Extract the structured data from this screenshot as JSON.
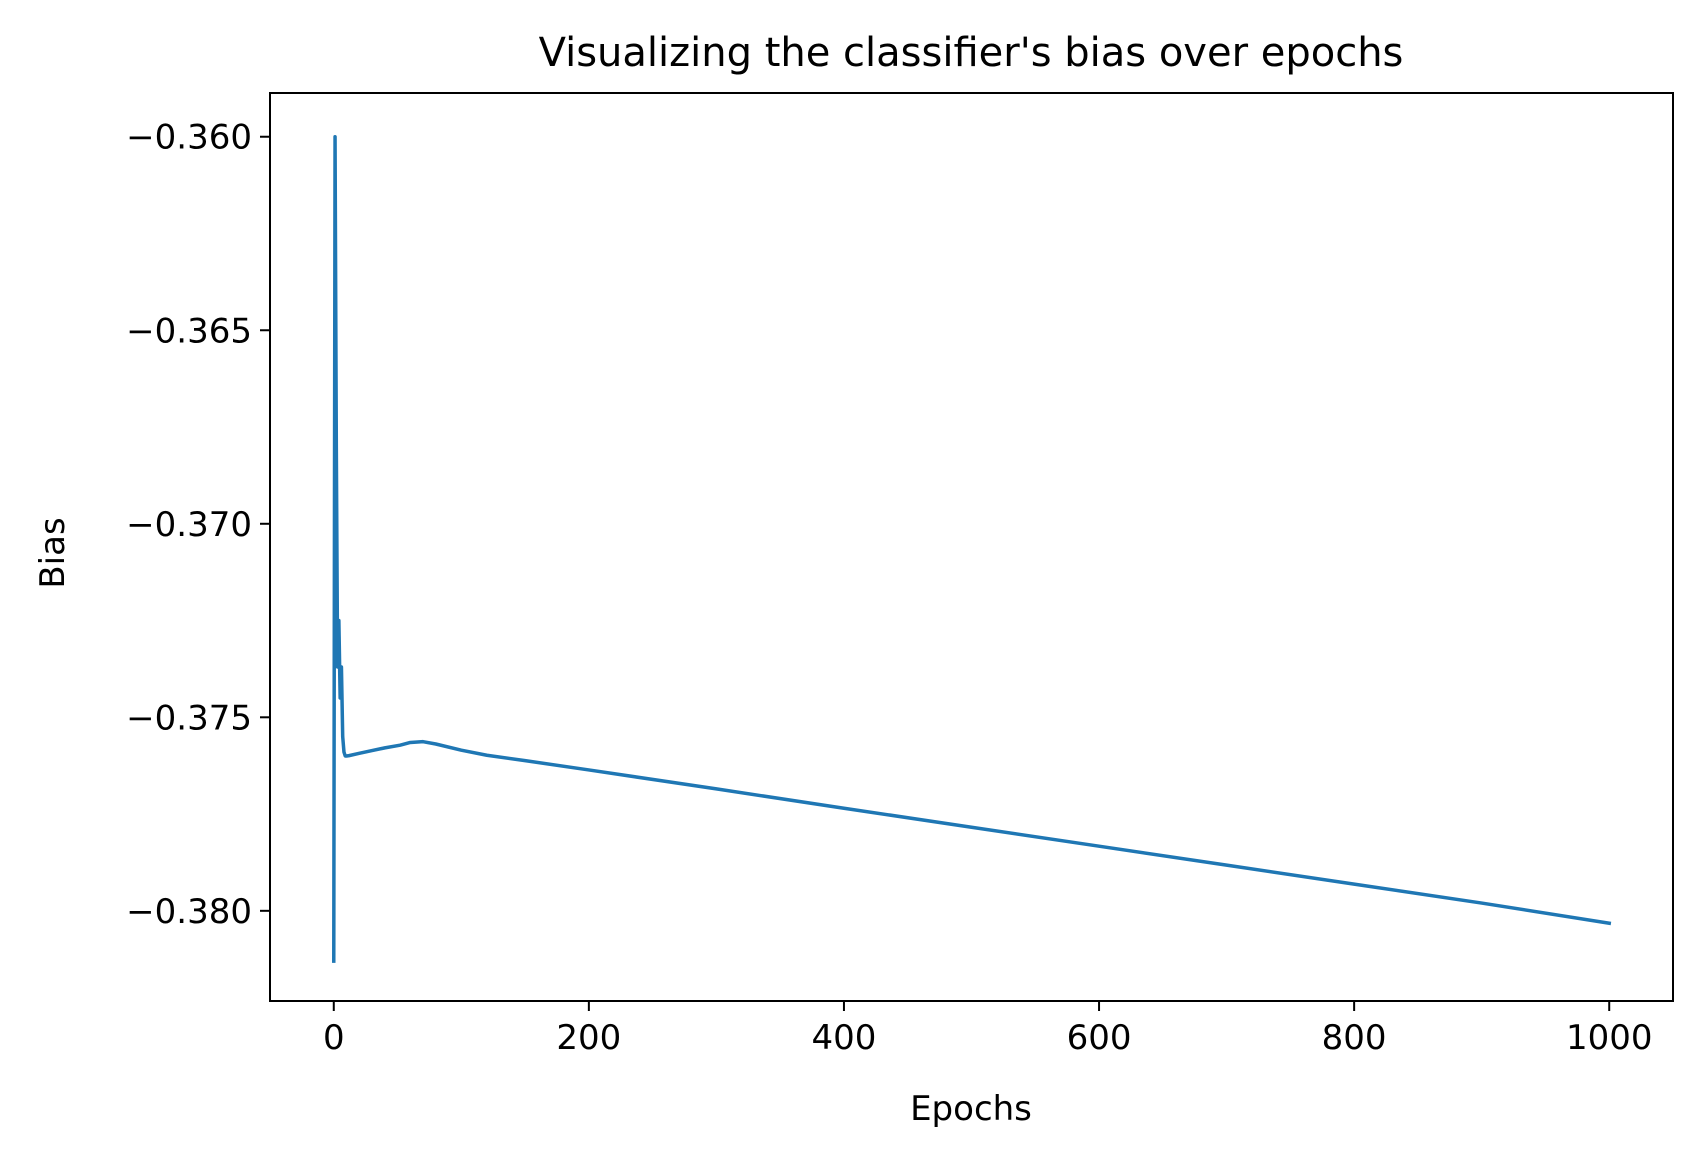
{
  "chart_data": {
    "type": "line",
    "title": "Visualizing the classifier's bias over epochs",
    "xlabel": "Epochs",
    "ylabel": "Bias",
    "xlim": [
      -50,
      1050
    ],
    "ylim": [
      -0.38233,
      -0.35887
    ],
    "xticks": [
      0,
      200,
      400,
      600,
      800,
      1000
    ],
    "xtick_labels": [
      "0",
      "200",
      "400",
      "600",
      "800",
      "1000"
    ],
    "yticks": [
      -0.36,
      -0.365,
      -0.37,
      -0.375,
      -0.38
    ],
    "ytick_labels": [
      "−0.360",
      "−0.365",
      "−0.370",
      "−0.375",
      "−0.380"
    ],
    "grid": false,
    "series": [
      {
        "color": "#1f77b4",
        "x": [
          0,
          1,
          2,
          3,
          4,
          5,
          6,
          7,
          8,
          9,
          10,
          12,
          20,
          30,
          40,
          52,
          60,
          70,
          80,
          100,
          120,
          150,
          200,
          300,
          400,
          500,
          600,
          700,
          800,
          900,
          1000
        ],
        "y": [
          -0.3813,
          -0.36,
          -0.368,
          -0.3737,
          -0.3725,
          -0.3745,
          -0.3737,
          -0.3755,
          -0.3759,
          -0.376,
          -0.376,
          -0.37599,
          -0.37593,
          -0.37586,
          -0.37579,
          -0.37572,
          -0.37565,
          -0.37563,
          -0.37569,
          -0.37585,
          -0.37598,
          -0.37612,
          -0.37636,
          -0.37685,
          -0.37735,
          -0.37784,
          -0.37833,
          -0.37882,
          -0.37931,
          -0.3798,
          -0.38032
        ]
      }
    ]
  }
}
